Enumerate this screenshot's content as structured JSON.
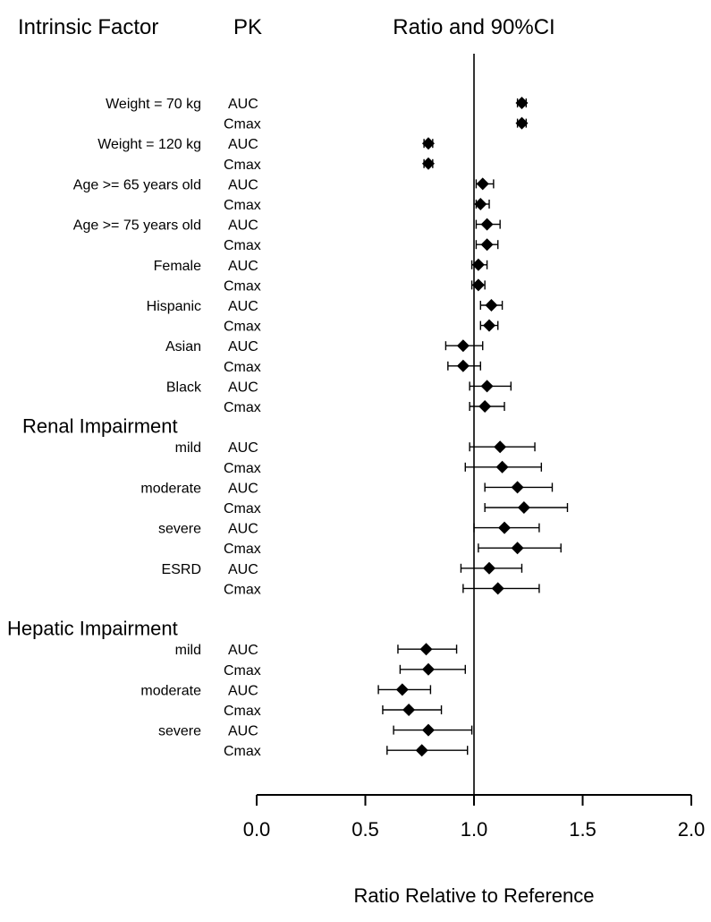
{
  "headers": {
    "factor": "Intrinsic Factor",
    "pk": "PK",
    "ratio": "Ratio and 90%CI"
  },
  "chart_data": {
    "type": "forest",
    "xlabel": "Ratio Relative to Reference",
    "xlim": [
      0.0,
      2.0
    ],
    "xticks": [
      "0.0",
      "0.5",
      "1.0",
      "1.5",
      "2.0"
    ],
    "reference_line": 1.0,
    "rows": [
      {
        "group": "Weight = 70 kg",
        "pk": "AUC",
        "est": 1.22,
        "lo": 1.2,
        "hi": 1.24
      },
      {
        "group": "",
        "pk": "Cmax",
        "est": 1.22,
        "lo": 1.2,
        "hi": 1.24
      },
      {
        "group": "Weight = 120 kg",
        "pk": "AUC",
        "est": 0.79,
        "lo": 0.77,
        "hi": 0.81
      },
      {
        "group": "",
        "pk": "Cmax",
        "est": 0.79,
        "lo": 0.77,
        "hi": 0.81
      },
      {
        "group": "Age >= 65 years old",
        "pk": "AUC",
        "est": 1.04,
        "lo": 1.01,
        "hi": 1.09
      },
      {
        "group": "",
        "pk": "Cmax",
        "est": 1.03,
        "lo": 1.01,
        "hi": 1.07
      },
      {
        "group": "Age >= 75 years old",
        "pk": "AUC",
        "est": 1.06,
        "lo": 1.01,
        "hi": 1.12
      },
      {
        "group": "",
        "pk": "Cmax",
        "est": 1.06,
        "lo": 1.01,
        "hi": 1.11
      },
      {
        "group": "Female",
        "pk": "AUC",
        "est": 1.02,
        "lo": 0.99,
        "hi": 1.06
      },
      {
        "group": "",
        "pk": "Cmax",
        "est": 1.02,
        "lo": 0.99,
        "hi": 1.05
      },
      {
        "group": "Hispanic",
        "pk": "AUC",
        "est": 1.08,
        "lo": 1.03,
        "hi": 1.13
      },
      {
        "group": "",
        "pk": "Cmax",
        "est": 1.07,
        "lo": 1.03,
        "hi": 1.11
      },
      {
        "group": "Asian",
        "pk": "AUC",
        "est": 0.95,
        "lo": 0.87,
        "hi": 1.04
      },
      {
        "group": "",
        "pk": "Cmax",
        "est": 0.95,
        "lo": 0.88,
        "hi": 1.03
      },
      {
        "group": "Black",
        "pk": "AUC",
        "est": 1.06,
        "lo": 0.98,
        "hi": 1.17
      },
      {
        "group": "",
        "pk": "Cmax",
        "est": 1.05,
        "lo": 0.98,
        "hi": 1.14
      },
      {
        "section": "Renal Impairment"
      },
      {
        "group": "mild",
        "pk": "AUC",
        "est": 1.12,
        "lo": 0.98,
        "hi": 1.28
      },
      {
        "group": "",
        "pk": "Cmax",
        "est": 1.13,
        "lo": 0.96,
        "hi": 1.31
      },
      {
        "group": "moderate",
        "pk": "AUC",
        "est": 1.2,
        "lo": 1.05,
        "hi": 1.36
      },
      {
        "group": "",
        "pk": "Cmax",
        "est": 1.23,
        "lo": 1.05,
        "hi": 1.43
      },
      {
        "group": "severe",
        "pk": "AUC",
        "est": 1.14,
        "lo": 1.0,
        "hi": 1.3
      },
      {
        "group": "",
        "pk": "Cmax",
        "est": 1.2,
        "lo": 1.02,
        "hi": 1.4
      },
      {
        "group": "ESRD",
        "pk": "AUC",
        "est": 1.07,
        "lo": 0.94,
        "hi": 1.22
      },
      {
        "group": "",
        "pk": "Cmax",
        "est": 1.11,
        "lo": 0.95,
        "hi": 1.3
      },
      {
        "spacer": true
      },
      {
        "section": "Hepatic Impairment"
      },
      {
        "group": "mild",
        "pk": "AUC",
        "est": 0.78,
        "lo": 0.65,
        "hi": 0.92
      },
      {
        "group": "",
        "pk": "Cmax",
        "est": 0.79,
        "lo": 0.66,
        "hi": 0.96
      },
      {
        "group": "moderate",
        "pk": "AUC",
        "est": 0.67,
        "lo": 0.56,
        "hi": 0.8
      },
      {
        "group": "",
        "pk": "Cmax",
        "est": 0.7,
        "lo": 0.58,
        "hi": 0.85
      },
      {
        "group": "severe",
        "pk": "AUC",
        "est": 0.79,
        "lo": 0.63,
        "hi": 0.99
      },
      {
        "group": "",
        "pk": "Cmax",
        "est": 0.76,
        "lo": 0.6,
        "hi": 0.97
      }
    ]
  }
}
